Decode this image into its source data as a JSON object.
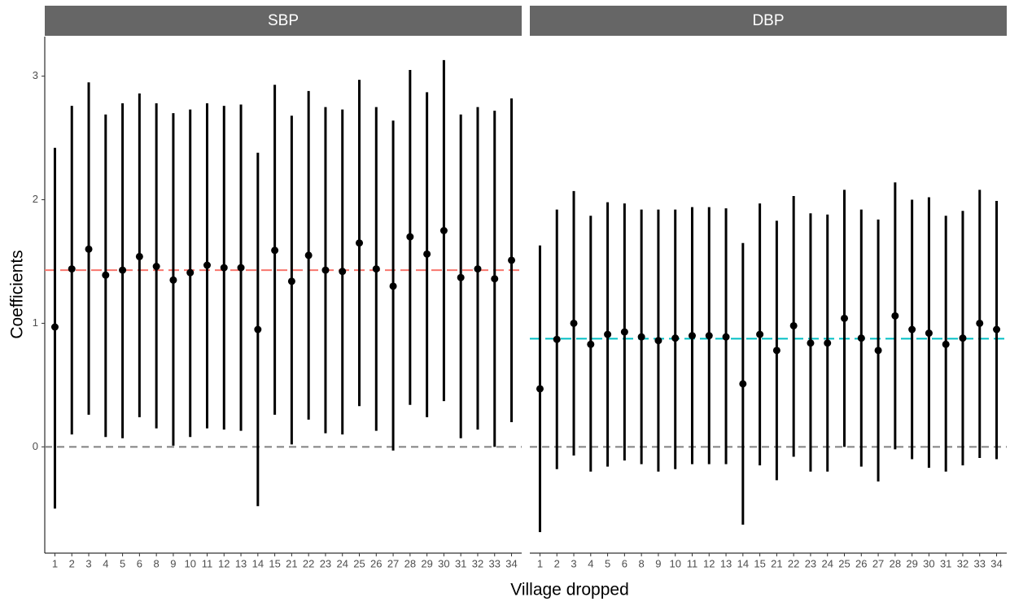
{
  "axis_labels": {
    "x": "Village dropped",
    "y": "Coefficients"
  },
  "chart_data": [
    {
      "type": "errorbar",
      "title": "SBP",
      "color": "#000000",
      "categories": [
        "1",
        "2",
        "3",
        "4",
        "5",
        "6",
        "8",
        "9",
        "10",
        "11",
        "12",
        "13",
        "14",
        "15",
        "21",
        "22",
        "23",
        "24",
        "25",
        "26",
        "27",
        "28",
        "29",
        "30",
        "31",
        "32",
        "33",
        "34"
      ],
      "values": [
        0.97,
        1.44,
        1.6,
        1.39,
        1.43,
        1.54,
        1.46,
        1.35,
        1.41,
        1.47,
        1.45,
        1.45,
        0.95,
        1.59,
        1.34,
        1.55,
        1.43,
        1.42,
        1.65,
        1.44,
        1.3,
        1.7,
        1.56,
        1.75,
        1.37,
        1.44,
        1.36,
        1.51
      ],
      "lower": [
        -0.5,
        0.1,
        0.26,
        0.08,
        0.07,
        0.24,
        0.15,
        0.01,
        0.08,
        0.15,
        0.14,
        0.13,
        -0.48,
        0.26,
        0.02,
        0.22,
        0.11,
        0.1,
        0.33,
        0.13,
        -0.03,
        0.34,
        0.24,
        0.37,
        0.07,
        0.14,
        0.0,
        0.2
      ],
      "upper": [
        2.42,
        2.76,
        2.95,
        2.69,
        2.78,
        2.86,
        2.78,
        2.7,
        2.73,
        2.78,
        2.76,
        2.77,
        2.38,
        2.93,
        2.68,
        2.88,
        2.75,
        2.73,
        2.97,
        2.75,
        2.64,
        3.05,
        2.87,
        3.13,
        2.69,
        2.75,
        2.72,
        2.82
      ],
      "ref_line": {
        "value": 1.43,
        "color": "#f8766d"
      },
      "zero_line": 0,
      "ylim": [
        -0.86,
        3.32
      ],
      "yticks": [
        0,
        1,
        2,
        3
      ]
    },
    {
      "type": "errorbar",
      "title": "DBP",
      "color": "#000000",
      "categories": [
        "1",
        "2",
        "3",
        "4",
        "5",
        "6",
        "8",
        "9",
        "10",
        "11",
        "12",
        "13",
        "14",
        "15",
        "21",
        "22",
        "23",
        "24",
        "25",
        "26",
        "27",
        "28",
        "29",
        "30",
        "31",
        "32",
        "33",
        "34"
      ],
      "values": [
        0.47,
        0.87,
        1.0,
        0.83,
        0.91,
        0.93,
        0.89,
        0.86,
        0.88,
        0.9,
        0.9,
        0.89,
        0.51,
        0.91,
        0.78,
        0.98,
        0.84,
        0.84,
        1.04,
        0.88,
        0.78,
        1.06,
        0.95,
        0.92,
        0.83,
        0.88,
        1.0,
        0.95
      ],
      "lower": [
        -0.69,
        -0.18,
        -0.07,
        -0.2,
        -0.16,
        -0.11,
        -0.14,
        -0.2,
        -0.18,
        -0.14,
        -0.14,
        -0.14,
        -0.63,
        -0.15,
        -0.27,
        -0.08,
        -0.2,
        -0.2,
        0.0,
        -0.16,
        -0.28,
        -0.02,
        -0.1,
        -0.17,
        -0.2,
        -0.15,
        -0.09,
        -0.1
      ],
      "upper": [
        1.63,
        1.92,
        2.07,
        1.87,
        1.98,
        1.97,
        1.92,
        1.92,
        1.92,
        1.94,
        1.94,
        1.93,
        1.65,
        1.97,
        1.83,
        2.03,
        1.89,
        1.88,
        2.08,
        1.92,
        1.84,
        2.14,
        2.0,
        2.02,
        1.87,
        1.91,
        2.08,
        1.99
      ],
      "ref_line": {
        "value": 0.875,
        "color": "#00bfc4"
      },
      "zero_line": 0,
      "ylim": [
        -0.86,
        3.32
      ]
    }
  ]
}
